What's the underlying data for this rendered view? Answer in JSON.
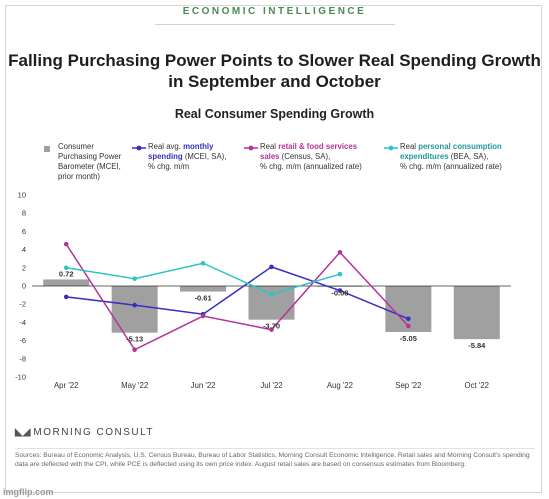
{
  "brand": "ECONOMIC INTELLIGENCE",
  "headline_line1": "Falling Purchasing Power Points to Slower Real Spending Growth",
  "headline_line2": "in September and October",
  "legend": {
    "bar": {
      "line1": "Consumer",
      "line2": "Purchasing Power",
      "line3": "Barometer (MCEI,",
      "line4": "prior month)"
    },
    "blue": {
      "pre": "Real avg. ",
      "hl1": "monthly",
      "hl2": "spending",
      "post2": " (MCEI, SA),",
      "line3": "% chg. m/m"
    },
    "pink": {
      "pre": "Real ",
      "hl1": "retail & food services",
      "hl2": "sales",
      "post2": " (Census, SA),",
      "line3": "% chg. m/m (annualized rate)"
    },
    "teal": {
      "pre": "Real ",
      "hl1": "personal consumption",
      "hl2": "expenditures",
      "post2": " (BEA, SA),",
      "line3": "% chg. m/m (annualized rate)"
    }
  },
  "logo_text": "MORNING CONSULT",
  "sources": "Sources: Bureau of Economic Analysis, U.S. Census Bureau, Bureau of Labor Statistics, Morning Consult Economic Intelligence. Retail sales and Morning Consult's spending data are deflected with the CPI, while PCE is deflected using its own price index. August retail sales are based on consensus estimates from Bloomberg.",
  "watermark": "imgflip.com",
  "colors": {
    "bar": "#a0a0a0",
    "blue": "#3a2fc0",
    "pink": "#b4349a",
    "teal": "#2ec4c4",
    "green": "#4a8a54"
  },
  "chart_data": {
    "type": "bar+line",
    "title": "Real Consumer Spending Growth",
    "categories": [
      "Apr '22",
      "May '22",
      "Jun '22",
      "Jul '22",
      "Aug '22",
      "Sep '22",
      "Oct '22"
    ],
    "ylim": [
      -10,
      10
    ],
    "yticks": [
      10,
      8,
      6,
      4,
      2,
      0,
      -2,
      -4,
      -6,
      -8,
      -10
    ],
    "bars": {
      "name": "Consumer Purchasing Power Barometer (MCEI, prior month)",
      "values": [
        0.72,
        -5.13,
        -0.61,
        -3.7,
        -0.08,
        -5.05,
        -5.84
      ],
      "labels": [
        "0.72",
        "-5.13",
        "-0.61",
        "-3.70",
        "-0.08",
        "-5.05",
        "-5.84"
      ]
    },
    "series": [
      {
        "name": "Real avg. monthly spending (MCEI, SA), % chg. m/m",
        "color": "#3a2fc0",
        "values": [
          -1.2,
          -2.1,
          -3.1,
          2.1,
          -0.5,
          -3.6,
          null
        ]
      },
      {
        "name": "Real retail & food services sales (Census, SA), % chg. m/m (annualized rate)",
        "color": "#b4349a",
        "values": [
          4.6,
          -7.0,
          -3.3,
          -4.8,
          3.7,
          -4.4,
          null
        ]
      },
      {
        "name": "Real personal consumption expenditures (BEA, SA), % chg. m/m (annualized rate)",
        "color": "#2ec4c4",
        "values": [
          2.0,
          0.8,
          2.5,
          -0.9,
          1.3,
          null,
          null
        ]
      }
    ],
    "grid": false,
    "legend_position": "top"
  }
}
